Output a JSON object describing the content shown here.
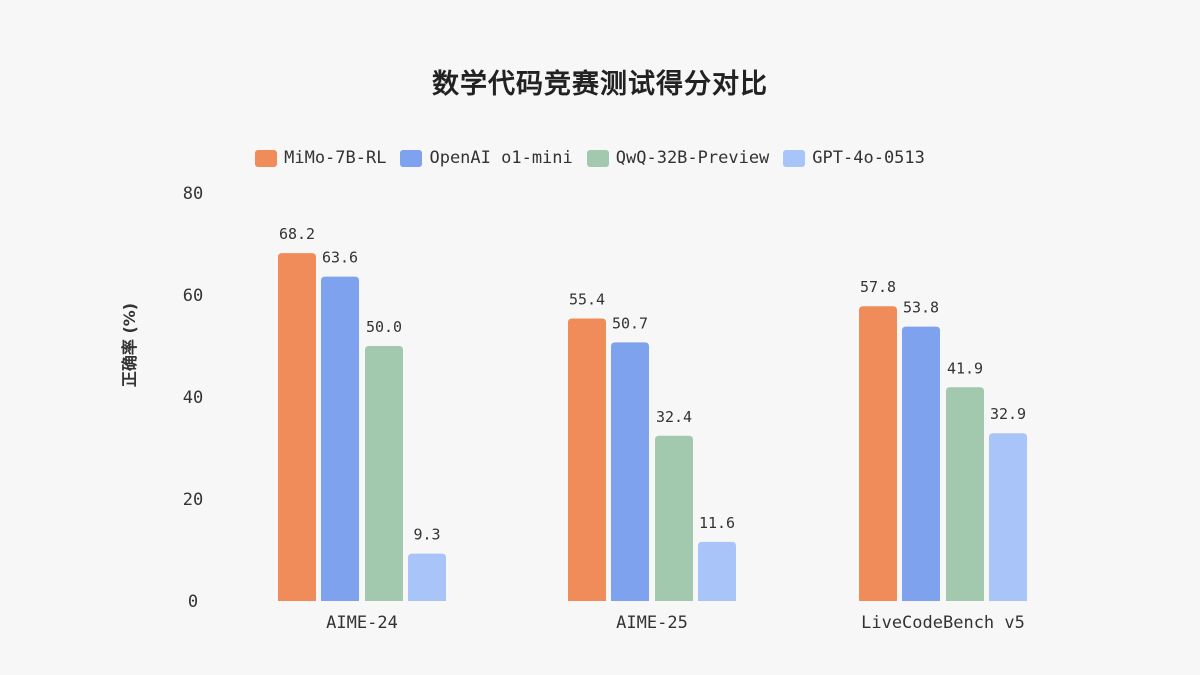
{
  "chart_data": {
    "type": "bar",
    "title": "数学代码竞赛测试得分对比",
    "ylabel": "正确率 (%)",
    "xlabel": "",
    "ylim": [
      0,
      80
    ],
    "yticks": [
      0,
      20,
      40,
      60,
      80
    ],
    "grid": false,
    "legend_position": "top",
    "categories": [
      "AIME-24",
      "AIME-25",
      "LiveCodeBench v5"
    ],
    "series": [
      {
        "name": "MiMo-7B-RL",
        "color": "#EF8C5A",
        "values": [
          68.2,
          55.4,
          57.8
        ]
      },
      {
        "name": "OpenAI o1-mini",
        "color": "#7FA2EE",
        "values": [
          63.6,
          50.7,
          53.8
        ]
      },
      {
        "name": "QwQ-32B-Preview",
        "color": "#A2C9AE",
        "values": [
          50.0,
          32.4,
          41.9
        ]
      },
      {
        "name": "GPT-4o-0513",
        "color": "#A9C4F8",
        "values": [
          9.3,
          11.6,
          32.9
        ]
      }
    ]
  }
}
